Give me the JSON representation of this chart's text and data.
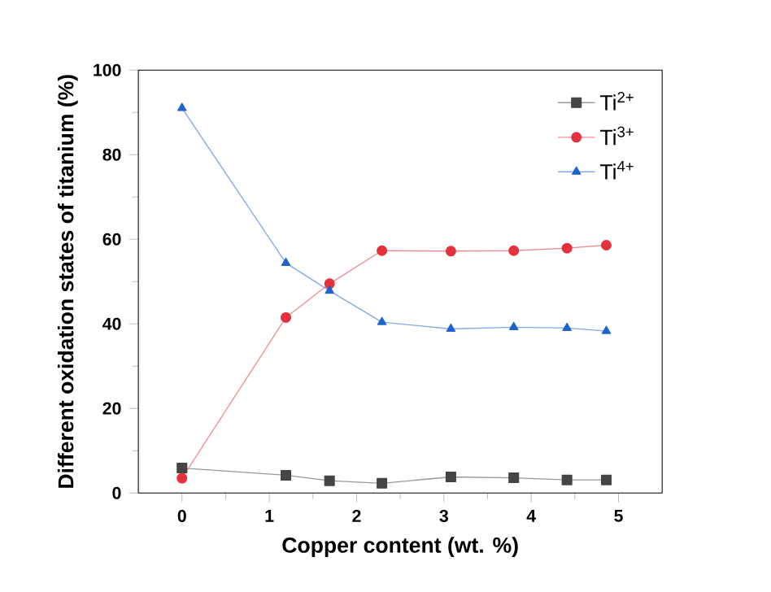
{
  "chart_data": {
    "type": "line",
    "xlabel": "Copper content (wt. %)",
    "ylabel": "Different oxidation states of titanium (%)",
    "x": [
      0,
      1.19,
      1.69,
      2.29,
      3.08,
      3.8,
      4.41,
      4.86
    ],
    "series": [
      {
        "name": "Ti$^{2+}$",
        "color": "#454545",
        "marker": "square",
        "values": [
          5.9,
          4.2,
          2.9,
          2.3,
          3.8,
          3.6,
          3.1,
          3.1
        ]
      },
      {
        "name": "Ti$^{3+}$",
        "color": "#e3323d",
        "marker": "circle",
        "values": [
          3.5,
          41.5,
          49.5,
          57.3,
          57.2,
          57.3,
          57.9,
          58.6
        ]
      },
      {
        "name": "Ti$^{4+}$",
        "color": "#1f63cc",
        "marker": "triangle",
        "values": [
          91.0,
          54.4,
          47.8,
          40.4,
          38.8,
          39.2,
          39.0,
          38.3
        ]
      }
    ],
    "xlim": [
      -0.5,
      5.5
    ],
    "xticks": [
      0,
      1,
      2,
      3,
      4,
      5
    ],
    "ylim": [
      0,
      100
    ],
    "yticks": [
      0,
      20,
      40,
      60,
      80,
      100
    ],
    "legend": "top right",
    "grid": false,
    "line_style": "solid"
  }
}
